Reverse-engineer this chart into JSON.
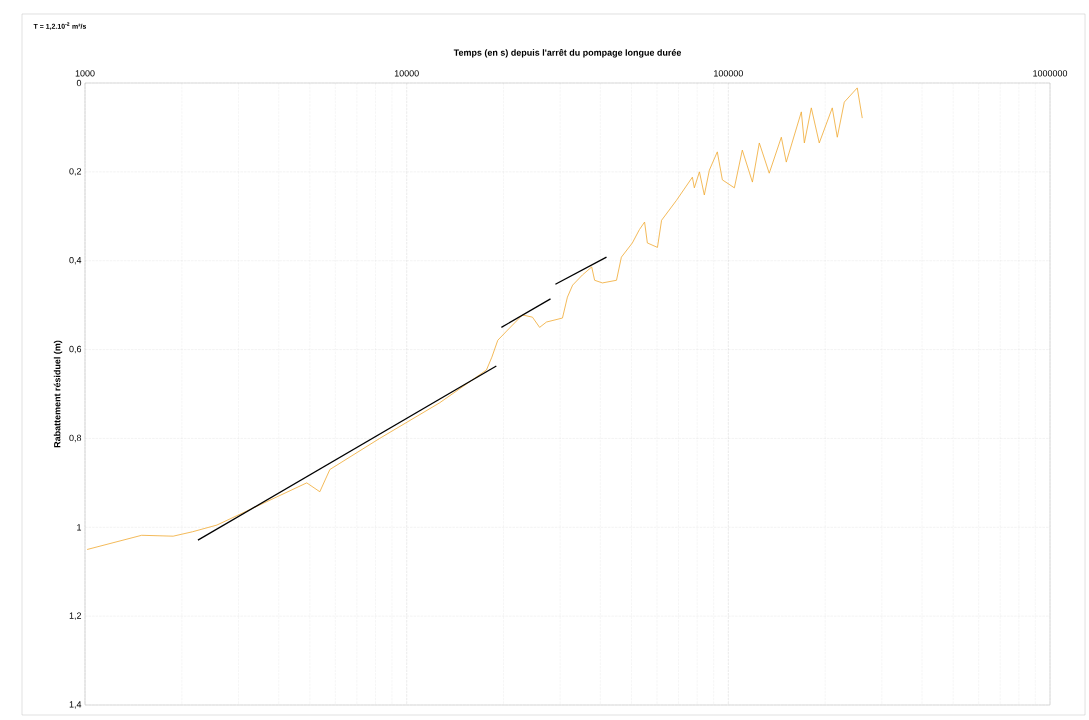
{
  "chart_data": {
    "type": "line",
    "xlabel": "Temps (en s) depuis l'arrêt du pompage longue durée",
    "ylabel": "Rabattement résiduel (m)",
    "annotations": [
      "T = 1,2.10$^{-2}$ m²/s"
    ],
    "log": "x",
    "grid": true,
    "marker": "none",
    "line_style": "solid",
    "xlim": [
      1000,
      1000000
    ],
    "xticks": [
      1000,
      10000,
      100000,
      1000000
    ],
    "ylim": [
      1.4,
      0
    ],
    "yticks": [
      0,
      {
        "value": 0.2,
        "label": "0,2"
      },
      {
        "value": 0.4,
        "label": "0,4"
      },
      {
        "value": 0.6,
        "label": "0,6"
      },
      {
        "value": 0.8,
        "label": "0,8"
      },
      1,
      {
        "value": 1.2,
        "label": "1,2"
      },
      {
        "value": 1.4,
        "label": "1,4"
      }
    ],
    "series": [
      {
        "color": "#f0a830",
        "x": [
          1015,
          1500,
          1880,
          2160,
          2570,
          4890,
          5370,
          5770,
          8240,
          12650,
          17700,
          18400,
          19200,
          20600,
          22900,
          24600,
          25900,
          27200,
          30500,
          31600,
          32800,
          35200,
          37600,
          38400,
          40600,
          44900,
          46500,
          50300,
          52900,
          54900,
          56000,
          60200,
          62000,
          69000,
          77300,
          78400,
          81300,
          84200,
          87300,
          92400,
          95800,
          104400,
          110500,
          118800,
          124800,
          134000,
          146100,
          151400,
          168600,
          172300,
          181100,
          191700,
          210400,
          218100,
          229300,
          251600,
          260800
        ],
        "values": [
          1.05,
          1.018,
          1.02,
          1.01,
          0.995,
          0.9,
          0.92,
          0.87,
          0.8,
          0.72,
          0.646,
          0.617,
          0.579,
          0.556,
          0.522,
          0.527,
          0.55,
          0.538,
          0.529,
          0.482,
          0.455,
          0.432,
          0.414,
          0.444,
          0.45,
          0.444,
          0.392,
          0.36,
          0.33,
          0.313,
          0.36,
          0.37,
          0.309,
          0.264,
          0.212,
          0.236,
          0.2,
          0.252,
          0.196,
          0.155,
          0.218,
          0.236,
          0.151,
          0.223,
          0.135,
          0.203,
          0.122,
          0.178,
          0.065,
          0.135,
          0.056,
          0.135,
          0.056,
          0.122,
          0.043,
          0.011,
          0.079
        ]
      },
      {
        "color": "#000000",
        "x": [
          2244,
          19000
        ],
        "values": [
          1.029,
          0.637
        ]
      },
      {
        "color": "#000000",
        "x": [
          19700,
          28000
        ],
        "values": [
          0.55,
          0.486
        ]
      },
      {
        "color": "#000000",
        "x": [
          29000,
          41800
        ],
        "values": [
          0.453,
          0.392
        ]
      }
    ]
  }
}
